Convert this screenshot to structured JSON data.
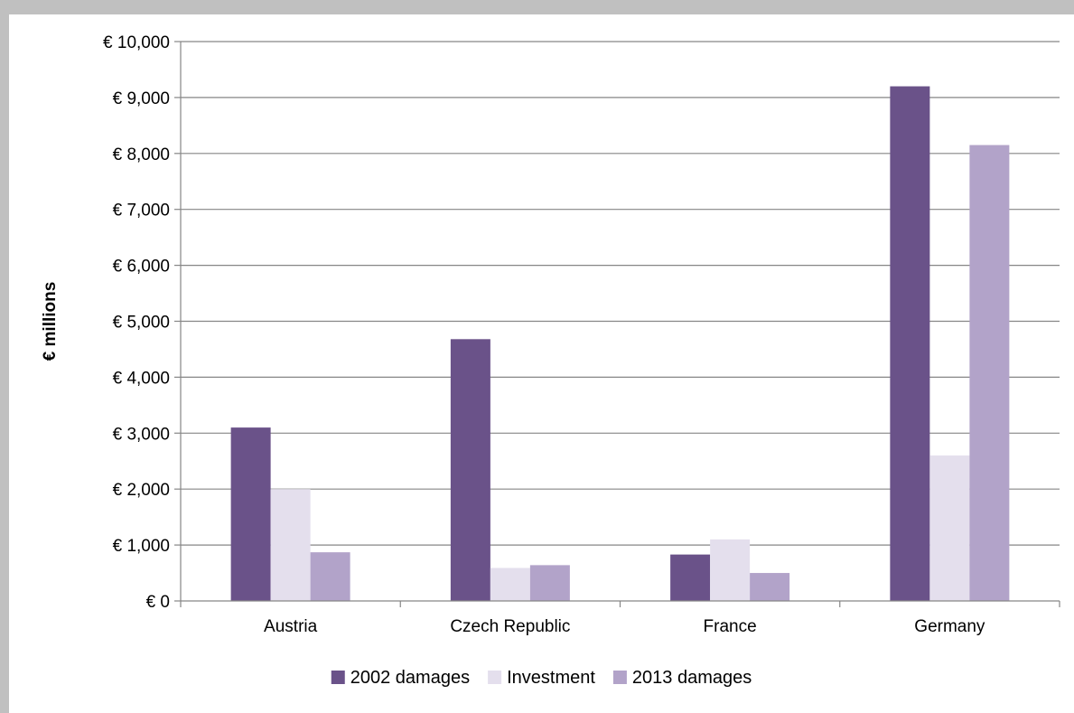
{
  "chart_data": {
    "type": "bar",
    "title": "",
    "xlabel": "",
    "ylabel": "€ millions",
    "ylim": [
      0,
      10000
    ],
    "yticks": [
      0,
      1000,
      2000,
      3000,
      4000,
      5000,
      6000,
      7000,
      8000,
      9000,
      10000
    ],
    "ytick_labels": [
      "€ 0",
      "€ 1,000",
      "€ 2,000",
      "€ 3,000",
      "€ 4,000",
      "€ 5,000",
      "€ 6,000",
      "€ 7,000",
      "€ 8,000",
      "€ 9,000",
      "€ 10,000"
    ],
    "categories": [
      "Austria",
      "Czech Republic",
      "France",
      "Germany"
    ],
    "series": [
      {
        "name": "2002 damages",
        "color": "#6a5289",
        "values": [
          3100,
          4680,
          830,
          9200
        ]
      },
      {
        "name": "Investment",
        "color": "#e4dfed",
        "values": [
          2000,
          590,
          1100,
          2600
        ]
      },
      {
        "name": "2013 damages",
        "color": "#b2a3c9",
        "values": [
          870,
          640,
          500,
          8150
        ]
      }
    ],
    "grid": true,
    "legend_position": "bottom"
  }
}
